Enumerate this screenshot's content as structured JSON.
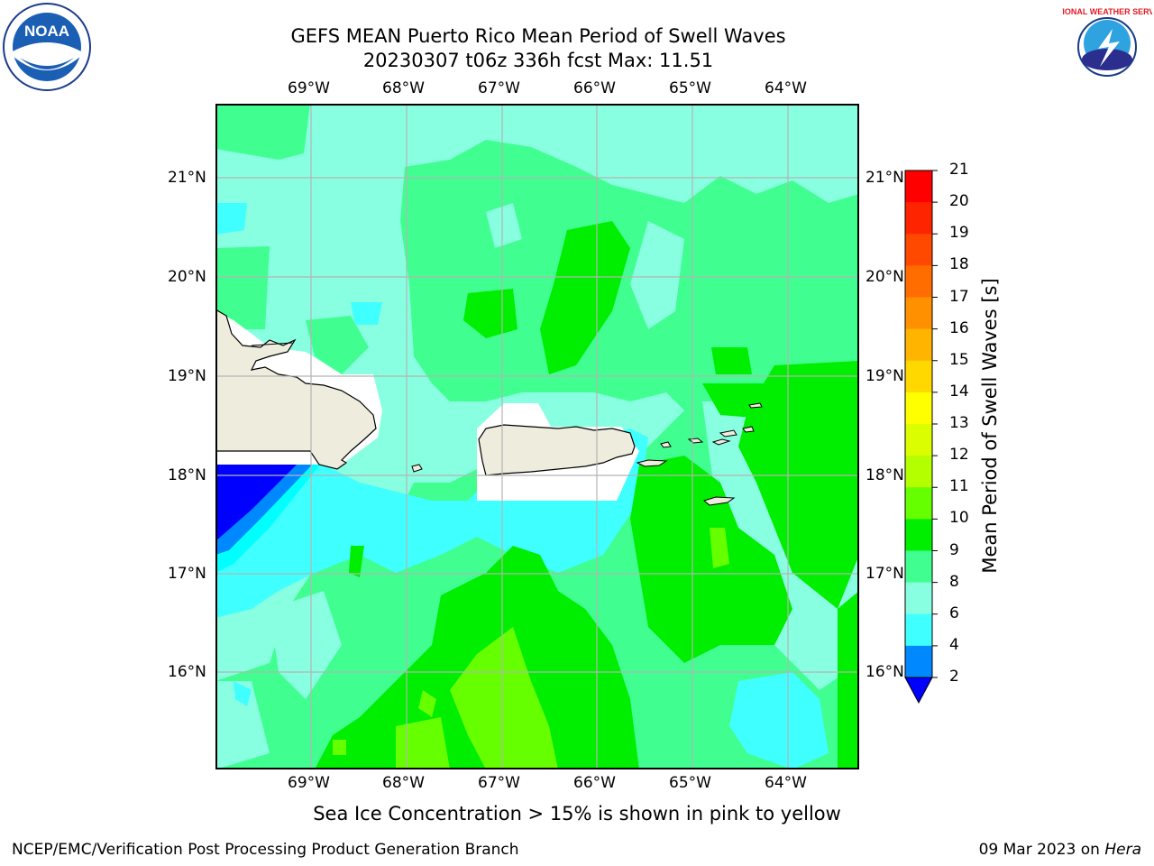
{
  "header": {
    "title_line1": "GEFS MEAN Puerto Rico Mean Period of Swell Waves",
    "title_line2": "20230307 t06z 336h fcst   Max: 11.51"
  },
  "logos": {
    "left": {
      "icon": "noaa-logo-icon",
      "text": "NOAA"
    },
    "right": {
      "icon": "national-weather-service-logo-icon",
      "text": "NATIONAL WEATHER SERVICE"
    }
  },
  "map": {
    "lon_labels": [
      "69°W",
      "68°W",
      "67°W",
      "66°W",
      "65°W",
      "64°W"
    ],
    "lat_labels": [
      "21°N",
      "20°N",
      "19°N",
      "18°N",
      "17°N",
      "16°N"
    ],
    "land_color": "#eeecdc",
    "grid_color": "#b4b4b4"
  },
  "colorbar": {
    "label": "Mean Period of Swell Waves [s]",
    "ticks": [
      "21",
      "20",
      "19",
      "18",
      "17",
      "16",
      "15",
      "14",
      "13",
      "12",
      "11",
      "10",
      "9",
      "8",
      "6",
      "4",
      "2"
    ],
    "colors": [
      "#ff0000",
      "#ff2400",
      "#ff4800",
      "#ff6c00",
      "#ff9000",
      "#ffb400",
      "#ffd800",
      "#ffff00",
      "#dcff00",
      "#b4ff00",
      "#66ff00",
      "#00ff00",
      "#00dd00",
      "#00ff66",
      "#40ff90",
      "#88ffe0",
      "#00ffff",
      "#0088ff",
      "#0000ff"
    ],
    "extend_color": "#0000ff"
  },
  "note": "Sea Ice Concentration > 15% is shown in pink to yellow",
  "footer": {
    "left": "NCEP/EMC/Verification Post Processing Product Generation Branch",
    "right_prefix": "09 Mar 2023 on ",
    "right_machine": "Hera"
  }
}
